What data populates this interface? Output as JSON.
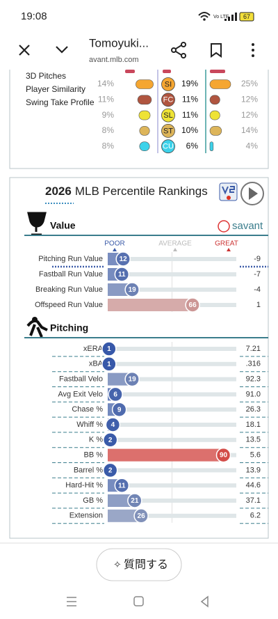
{
  "status_bar": {
    "time": "19:08",
    "network": "Vo LTE",
    "battery": "67"
  },
  "browser": {
    "title": "Tomoyuki...",
    "url": "avant.mlb.com"
  },
  "pitch_mix": {
    "links": [
      "3D Pitches",
      "Player Similarity",
      "Swing Take Profile"
    ],
    "rows": [
      {
        "pitch": "SI",
        "color": "#f5a631",
        "left": 14,
        "left_label": "14%",
        "mid": 19,
        "mid_label": "19%",
        "right": 25,
        "right_label": "25%"
      },
      {
        "pitch": "FC",
        "color": "#b0553f",
        "left": 11,
        "left_label": "11%",
        "mid": 11,
        "mid_label": "11%",
        "right": 12,
        "right_label": "12%"
      },
      {
        "pitch": "SL",
        "color": "#eee335",
        "left": 9,
        "left_label": "9%",
        "mid": 11,
        "mid_label": "11%",
        "right": 12,
        "right_label": "12%"
      },
      {
        "pitch": "ST",
        "color": "#ddb55a",
        "left": 8,
        "left_label": "8%",
        "mid": 10,
        "mid_label": "10%",
        "right": 14,
        "right_label": "14%"
      },
      {
        "pitch": "CU",
        "color": "#3dd2ea",
        "left": 8,
        "left_label": "8%",
        "mid": 6,
        "mid_label": "6%",
        "right": 4,
        "right_label": "4%"
      }
    ]
  },
  "percentile_rankings": {
    "year": "2026",
    "title": "MLB Percentile Rankings",
    "logo": "savant",
    "scale": {
      "poor": "POOR",
      "average": "AVERAGE",
      "great": "GREAT"
    },
    "sections": [
      {
        "name": "Value",
        "rows": [
          {
            "metric": "Pitching Run Value",
            "percentile": 12,
            "stat": "-9"
          },
          {
            "metric": "Fastball Run Value",
            "percentile": 11,
            "stat": "-7"
          },
          {
            "metric": "Breaking Run Value",
            "percentile": 19,
            "stat": "-4"
          },
          {
            "metric": "Offspeed Run Value",
            "percentile": 66,
            "stat": "1"
          }
        ]
      },
      {
        "name": "Pitching",
        "rows": [
          {
            "metric": "xERA",
            "percentile": 1,
            "stat": "7.21"
          },
          {
            "metric": "xBA",
            "percentile": 1,
            "stat": ".316"
          },
          {
            "metric": "Fastball Velo",
            "percentile": 19,
            "stat": "92.3"
          },
          {
            "metric": "Avg Exit Velo",
            "percentile": 6,
            "stat": "91.0"
          },
          {
            "metric": "Chase %",
            "percentile": 9,
            "stat": "26.3"
          },
          {
            "metric": "Whiff %",
            "percentile": 4,
            "stat": "18.1"
          },
          {
            "metric": "K %",
            "percentile": 2,
            "stat": "13.5"
          },
          {
            "metric": "BB %",
            "percentile": 90,
            "stat": "5.6"
          },
          {
            "metric": "Barrel %",
            "percentile": 2,
            "stat": "13.9"
          },
          {
            "metric": "Hard-Hit %",
            "percentile": 11,
            "stat": "44.6"
          },
          {
            "metric": "GB %",
            "percentile": 21,
            "stat": "37.1"
          },
          {
            "metric": "Extension",
            "percentile": 26,
            "stat": "6.2"
          }
        ]
      }
    ]
  },
  "ask_button": "質問する"
}
